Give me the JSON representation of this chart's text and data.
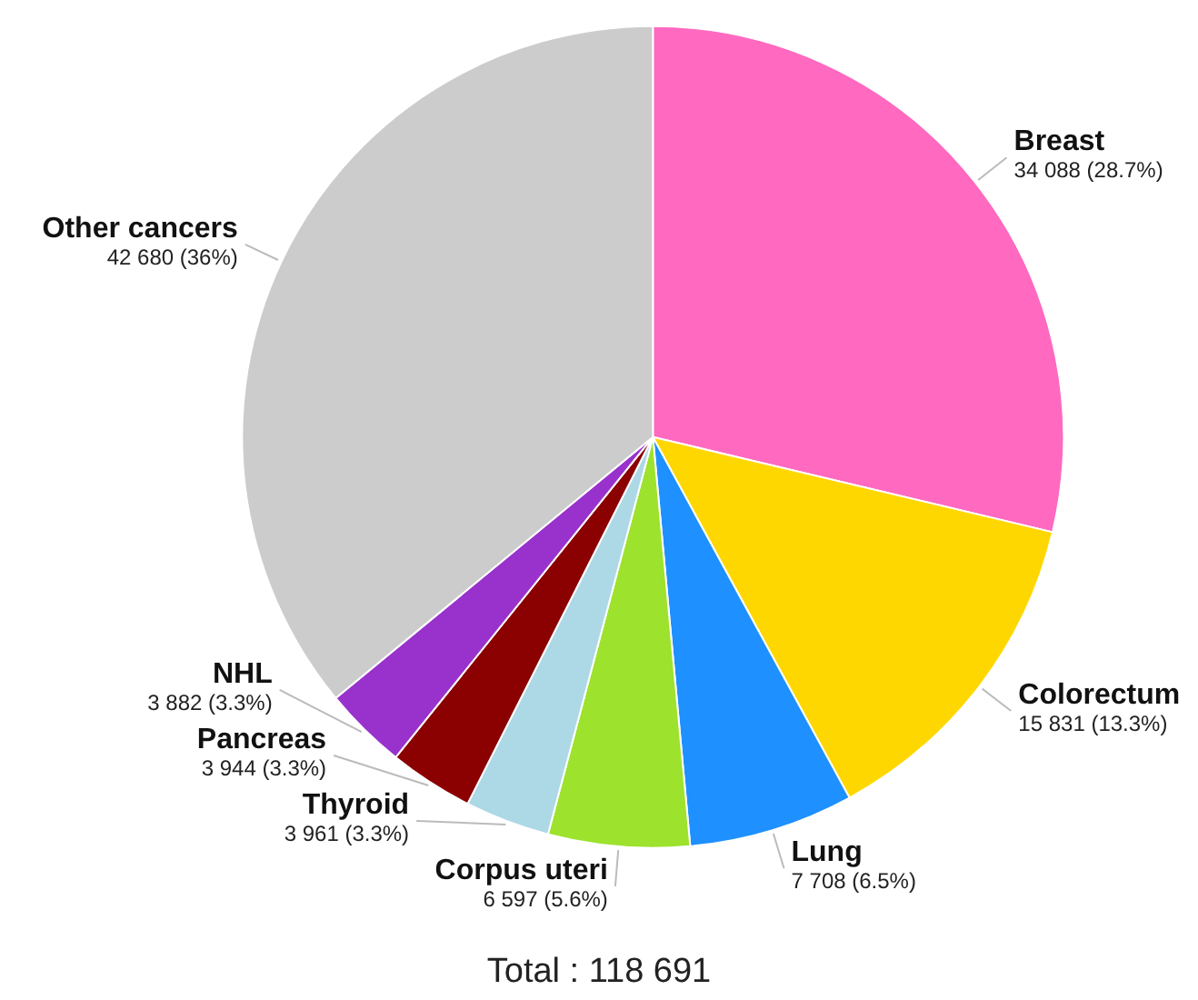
{
  "chart_data": {
    "type": "pie",
    "categories": [
      "Breast",
      "Colorectum",
      "Lung",
      "Corpus uteri",
      "Thyroid",
      "Pancreas",
      "NHL",
      "Other cancers"
    ],
    "values": [
      34088,
      15831,
      7708,
      6597,
      3961,
      3944,
      3882,
      42680
    ],
    "colors": [
      "#ff69c0",
      "#ffd700",
      "#1e90ff",
      "#9de22d",
      "#add8e6",
      "#8b0000",
      "#9932cc",
      "#cccccc"
    ],
    "value_labels": [
      "34 088 (28.7%)",
      "15 831 (13.3%)",
      "7 708 (6.5%)",
      "6 597 (5.6%)",
      "3 961 (3.3%)",
      "3 944 (3.3%)",
      "3 882 (3.3%)",
      "42 680 (36%)"
    ],
    "annotations": [
      "Total : 118 691"
    ]
  }
}
